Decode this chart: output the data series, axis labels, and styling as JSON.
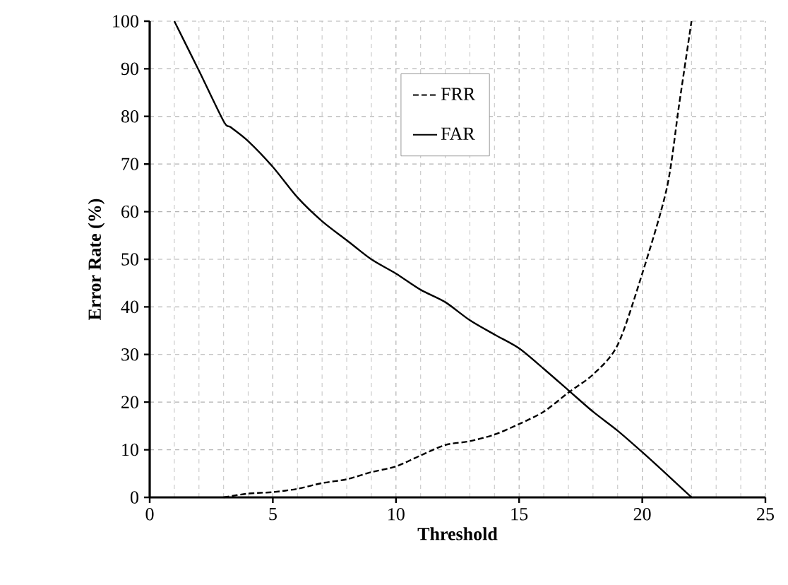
{
  "chart_data": {
    "type": "line",
    "xlabel": "Threshold",
    "ylabel": "Error Rate (%)",
    "xlim": [
      0,
      25
    ],
    "ylim": [
      0,
      100
    ],
    "xticks": [
      0,
      5,
      10,
      15,
      20,
      25
    ],
    "yticks": [
      0,
      10,
      20,
      30,
      40,
      50,
      60,
      70,
      80,
      90,
      100
    ],
    "grid": true,
    "legend": "top",
    "marker": "none",
    "series": [
      {
        "name": "FRR",
        "color": "#000000",
        "line_style": "dashed",
        "x": [
          3,
          4,
          5,
          6,
          7,
          8,
          9,
          10,
          11,
          12,
          13,
          14,
          15,
          16,
          17,
          18,
          19,
          20,
          21,
          21.5,
          22
        ],
        "values": [
          0,
          0.8,
          1.1,
          1.8,
          3,
          3.8,
          5.3,
          6.5,
          8.8,
          11,
          11.8,
          13.2,
          15.4,
          18,
          22,
          25.8,
          32,
          47,
          65,
          82.6,
          100
        ]
      },
      {
        "name": "FAR",
        "color": "#000000",
        "line_style": "solid",
        "x": [
          1,
          2,
          3,
          3.3,
          4,
          5,
          6,
          7,
          8,
          9,
          10,
          11,
          12,
          13,
          14,
          15,
          16,
          17,
          18,
          19,
          20,
          21,
          22
        ],
        "values": [
          100,
          89.6,
          79,
          77.7,
          74.8,
          69.4,
          63,
          58,
          54,
          50,
          47,
          43.6,
          41,
          37.2,
          34.2,
          31.3,
          27,
          22.5,
          18,
          14,
          9.5,
          4.8,
          0
        ]
      }
    ]
  }
}
